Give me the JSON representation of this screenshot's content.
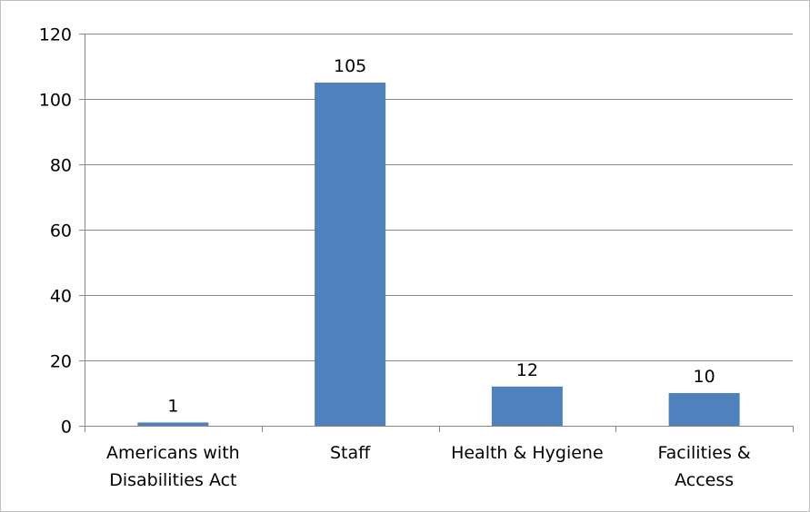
{
  "chart_data": {
    "type": "bar",
    "title": "",
    "xlabel": "",
    "ylabel": "",
    "categories": [
      [
        "Americans with",
        "Disabilities Act"
      ],
      [
        "Staff"
      ],
      [
        "Health & Hygiene"
      ],
      [
        "Facilities &",
        "Access"
      ]
    ],
    "category_names": [
      "Americans with Disabilities Act",
      "Staff",
      "Health & Hygiene",
      "Facilities & Access"
    ],
    "values": [
      1,
      105,
      12,
      10
    ],
    "data_labels": [
      "1",
      "105",
      "12",
      "10"
    ],
    "ylim": [
      0,
      120
    ],
    "yticks": [
      0,
      20,
      40,
      60,
      80,
      100,
      120
    ],
    "ytick_labels": [
      "0",
      "20",
      "40",
      "60",
      "80",
      "100",
      "120"
    ],
    "grid": true,
    "legend": "none",
    "bar_color": "#4f81bd",
    "grid_color": "#878787",
    "axis_color": "#878787"
  }
}
